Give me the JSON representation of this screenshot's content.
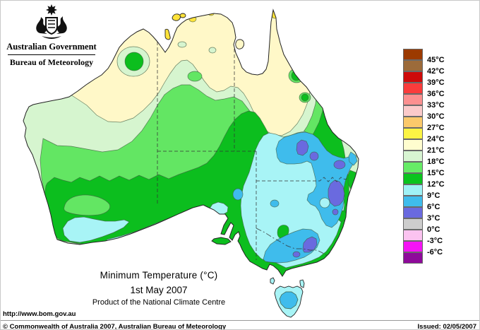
{
  "logo": {
    "government": "Australian Government",
    "bureau": "Bureau of Meteorology",
    "icon": "australian-coat-of-arms"
  },
  "titles": {
    "main": "Minimum Temperature (°C)",
    "date": "1st May 2007",
    "product": "Product of the National Climate Centre"
  },
  "url": "http://www.bom.gov.au",
  "footer": {
    "copyright": "© Commonwealth of Australia 2007, Australian Bureau of Meteorology",
    "issued": "Issued: 02/05/2007"
  },
  "legend": {
    "unit": "°C",
    "entries": [
      {
        "color": "#9C3A00",
        "label": "45°C"
      },
      {
        "color": "#9C6B3A",
        "label": "42°C"
      },
      {
        "color": "#CE0A0A",
        "label": "39°C"
      },
      {
        "color": "#FA3C3C",
        "label": "36°C"
      },
      {
        "color": "#FC9090",
        "label": "33°C"
      },
      {
        "color": "#FBCACA",
        "label": "30°C"
      },
      {
        "color": "#FBC96B",
        "label": "27°C"
      },
      {
        "color": "#FCF444",
        "label": "24°C"
      },
      {
        "color": "#FFFDCF",
        "label": "21°C"
      },
      {
        "color": "#D8F5D2",
        "label": "18°C"
      },
      {
        "color": "#66EC66",
        "label": "15°C"
      },
      {
        "color": "#0AC41E",
        "label": "12°C"
      },
      {
        "color": "#A0F2F6",
        "label": "9°C"
      },
      {
        "color": "#3FBCEC",
        "label": "6°C"
      },
      {
        "color": "#6A6ADF",
        "label": "3°C"
      },
      {
        "color": "#CDCDCD",
        "label": "0°C"
      },
      {
        "color": "#FBC3F0",
        "label": "-3°C"
      },
      {
        "color": "#F513F5",
        "label": "-6°C"
      },
      {
        "color": "#8E0A9A",
        "label": ""
      }
    ]
  },
  "palette": {
    "ocean": "#FFFFFF",
    "cream": "#FFF8C8",
    "pale_green": "#D6F5CF",
    "light_green": "#63E663",
    "green": "#0CBE1E",
    "cyan": "#A8F4F6",
    "sky_blue": "#3FBCEC",
    "blue_purple": "#6A6ADF",
    "yellow": "#FFE33A",
    "coast_line": "#222222",
    "border_line": "#333333"
  }
}
